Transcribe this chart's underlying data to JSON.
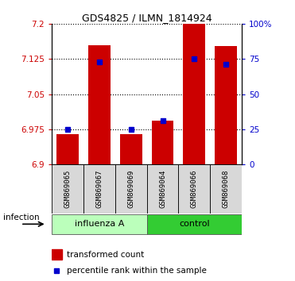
{
  "title": "GDS4825 / ILMN_1814924",
  "samples": [
    "GSM869065",
    "GSM869067",
    "GSM869069",
    "GSM869064",
    "GSM869066",
    "GSM869068"
  ],
  "red_values": [
    6.965,
    7.155,
    6.965,
    6.993,
    7.2,
    7.152
  ],
  "blue_values": [
    6.975,
    7.118,
    6.975,
    6.993,
    7.125,
    7.113
  ],
  "ymin": 6.9,
  "ymax": 7.2,
  "yticks": [
    6.9,
    6.975,
    7.05,
    7.125,
    7.2
  ],
  "ytick_labels": [
    "6.9",
    "6.975",
    "7.05",
    "7.125",
    "7.2"
  ],
  "right_yticks_pct": [
    0,
    25,
    50,
    75,
    100
  ],
  "right_ytick_labels": [
    "0",
    "25",
    "50",
    "75",
    "100%"
  ],
  "groups": [
    {
      "label": "influenza A",
      "start": 0,
      "end": 3,
      "color": "#bbffbb"
    },
    {
      "label": "control",
      "start": 3,
      "end": 6,
      "color": "#33cc33"
    }
  ],
  "factor_label": "infection",
  "legend_red": "transformed count",
  "legend_blue": "percentile rank within the sample",
  "red_color": "#cc0000",
  "blue_color": "#0000cc",
  "bar_width": 0.7,
  "blue_marker_size": 5
}
